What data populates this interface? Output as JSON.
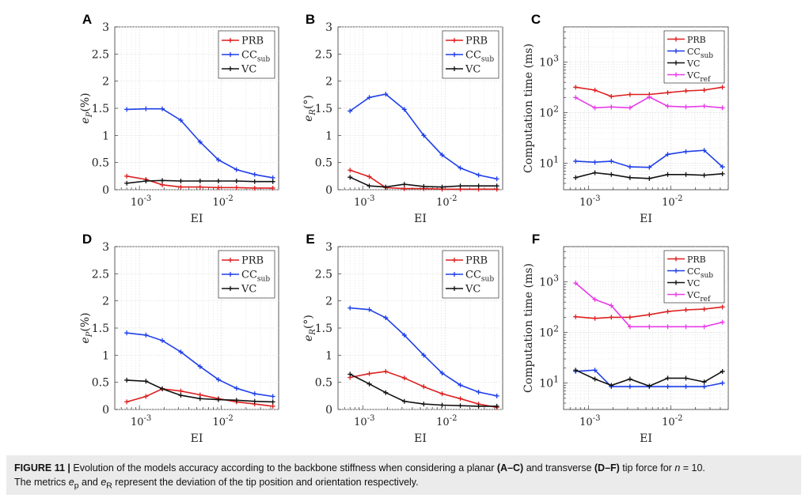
{
  "figure_label": "FIGURE 11",
  "caption": {
    "lead": "Evolution of the models accuracy according to the backbone stiffness when considering a planar ",
    "ref1": "(A–C)",
    "mid1": " and transverse ",
    "ref2": "(D–F)",
    "mid2": " tip force for ",
    "nvar": "n",
    "neq": " = 10.",
    "line2a": "The metrics ",
    "ep": "e",
    "ep_sub": "p",
    "and": " and ",
    "er": "e",
    "er_sub": "R",
    "line2b": " represent the deviation of the tip position and orientation respectively."
  },
  "colors": {
    "PRB": "#dd1f1f",
    "CCsub": "#1f3fe8",
    "VC": "#111111",
    "VCref": "#e83be8"
  },
  "chart_data": [
    {
      "panel": "A",
      "type": "line",
      "xscale": "log",
      "yscale": "linear",
      "xlim": [
        0.0005,
        0.05
      ],
      "ylim": [
        0,
        3
      ],
      "yticks": [
        "0",
        "0.5",
        "1",
        "1.5",
        "2",
        "2.5",
        "3"
      ],
      "xticks": [
        {
          "base": "10",
          "exp": "-3"
        },
        {
          "base": "10",
          "exp": "-2"
        }
      ],
      "xlabel": "EI",
      "ylabel": "e",
      "ylabel_sub": "P",
      "ylabel_unit": "(%)",
      "legend": "top-right",
      "x": [
        0.0007,
        0.0012,
        0.0019,
        0.0032,
        0.0055,
        0.0092,
        0.0153,
        0.0255,
        0.0425
      ],
      "series": [
        {
          "name": "PRB",
          "label": "PRB",
          "sub": "",
          "color": "#dd1f1f",
          "values": [
            0.25,
            0.19,
            0.09,
            0.05,
            0.05,
            0.04,
            0.04,
            0.03,
            0.03
          ]
        },
        {
          "name": "CCsub",
          "label": "CC",
          "sub": "sub",
          "color": "#1f3fe8",
          "values": [
            1.48,
            1.49,
            1.49,
            1.28,
            0.88,
            0.55,
            0.37,
            0.28,
            0.22
          ]
        },
        {
          "name": "VC",
          "label": "VC",
          "sub": "",
          "color": "#111111",
          "values": [
            0.12,
            0.16,
            0.17,
            0.16,
            0.16,
            0.16,
            0.16,
            0.15,
            0.15
          ]
        }
      ]
    },
    {
      "panel": "B",
      "type": "line",
      "xscale": "log",
      "yscale": "linear",
      "xlim": [
        0.0005,
        0.05
      ],
      "ylim": [
        0,
        3
      ],
      "yticks": [
        "0",
        "0.5",
        "1",
        "1.5",
        "2",
        "2.5",
        "3"
      ],
      "xticks": [
        {
          "base": "10",
          "exp": "-3"
        },
        {
          "base": "10",
          "exp": "-2"
        }
      ],
      "xlabel": "EI",
      "ylabel": "e",
      "ylabel_sub": "R",
      "ylabel_unit": "(°)",
      "legend": "top-right",
      "x": [
        0.0007,
        0.0012,
        0.0019,
        0.0032,
        0.0055,
        0.0092,
        0.0153,
        0.0255,
        0.0425
      ],
      "series": [
        {
          "name": "PRB",
          "label": "PRB",
          "sub": "",
          "color": "#dd1f1f",
          "values": [
            0.36,
            0.24,
            0.04,
            0.02,
            0.02,
            0.01,
            0.01,
            0.01,
            0.01
          ]
        },
        {
          "name": "CCsub",
          "label": "CC",
          "sub": "sub",
          "color": "#1f3fe8",
          "values": [
            1.45,
            1.7,
            1.76,
            1.48,
            1.0,
            0.64,
            0.4,
            0.27,
            0.2
          ]
        },
        {
          "name": "VC",
          "label": "VC",
          "sub": "",
          "color": "#111111",
          "values": [
            0.23,
            0.07,
            0.05,
            0.1,
            0.06,
            0.05,
            0.07,
            0.07,
            0.07
          ]
        }
      ]
    },
    {
      "panel": "C",
      "type": "line",
      "xscale": "log",
      "yscale": "log",
      "xlim": [
        0.0005,
        0.05
      ],
      "ylim": [
        3,
        5000
      ],
      "yticks_log": [
        {
          "base": "10",
          "exp": "1",
          "v": 10
        },
        {
          "base": "10",
          "exp": "2",
          "v": 100
        },
        {
          "base": "10",
          "exp": "3",
          "v": 1000
        }
      ],
      "xticks": [
        {
          "base": "10",
          "exp": "-3"
        },
        {
          "base": "10",
          "exp": "-2"
        }
      ],
      "xlabel": "EI",
      "ylabel": "Computation time (ms)",
      "legend": "top-right",
      "x": [
        0.0007,
        0.0012,
        0.0019,
        0.0032,
        0.0055,
        0.0092,
        0.0153,
        0.0255,
        0.0425
      ],
      "series": [
        {
          "name": "PRB",
          "label": "PRB",
          "sub": "",
          "color": "#dd1f1f",
          "values": [
            320,
            280,
            210,
            230,
            230,
            250,
            270,
            280,
            320
          ]
        },
        {
          "name": "CCsub",
          "label": "CC",
          "sub": "sub",
          "color": "#1f3fe8",
          "values": [
            11,
            10.5,
            11,
            8.5,
            8.3,
            15,
            17,
            18,
            8.5
          ]
        },
        {
          "name": "VC",
          "label": "VC",
          "sub": "",
          "color": "#111111",
          "values": [
            5.2,
            6.5,
            6.0,
            5.2,
            5.0,
            6.0,
            6.0,
            5.8,
            6.2
          ]
        },
        {
          "name": "VCref",
          "label": "VC",
          "sub": "ref",
          "color": "#e83be8",
          "values": [
            200,
            125,
            130,
            125,
            205,
            135,
            130,
            135,
            125
          ]
        }
      ]
    },
    {
      "panel": "D",
      "type": "line",
      "xscale": "log",
      "yscale": "linear",
      "xlim": [
        0.0005,
        0.05
      ],
      "ylim": [
        0,
        3
      ],
      "yticks": [
        "0",
        "0.5",
        "1",
        "1.5",
        "2",
        "2.5",
        "3"
      ],
      "xticks": [
        {
          "base": "10",
          "exp": "-3"
        },
        {
          "base": "10",
          "exp": "-2"
        }
      ],
      "xlabel": "EI",
      "ylabel": "e",
      "ylabel_sub": "P",
      "ylabel_unit": "(%)",
      "legend": "top-right",
      "x": [
        0.0007,
        0.0012,
        0.0019,
        0.0032,
        0.0055,
        0.0092,
        0.0153,
        0.0255,
        0.0425
      ],
      "series": [
        {
          "name": "PRB",
          "label": "PRB",
          "sub": "",
          "color": "#dd1f1f",
          "values": [
            0.14,
            0.24,
            0.38,
            0.34,
            0.27,
            0.2,
            0.14,
            0.1,
            0.06
          ]
        },
        {
          "name": "CCsub",
          "label": "CC",
          "sub": "sub",
          "color": "#1f3fe8",
          "values": [
            1.41,
            1.37,
            1.27,
            1.06,
            0.79,
            0.55,
            0.39,
            0.29,
            0.24
          ]
        },
        {
          "name": "VC",
          "label": "VC",
          "sub": "",
          "color": "#111111",
          "values": [
            0.54,
            0.52,
            0.38,
            0.26,
            0.2,
            0.18,
            0.17,
            0.15,
            0.14
          ]
        }
      ]
    },
    {
      "panel": "E",
      "type": "line",
      "xscale": "log",
      "yscale": "linear",
      "xlim": [
        0.0005,
        0.05
      ],
      "ylim": [
        0,
        3
      ],
      "yticks": [
        "0",
        "0.5",
        "1",
        "1.5",
        "2",
        "2.5",
        "3"
      ],
      "xticks": [
        {
          "base": "10",
          "exp": "-3"
        },
        {
          "base": "10",
          "exp": "-2"
        }
      ],
      "xlabel": "EI",
      "ylabel": "e",
      "ylabel_sub": "R",
      "ylabel_unit": "(°)",
      "legend": "top-right",
      "x": [
        0.0007,
        0.0012,
        0.0019,
        0.0032,
        0.0055,
        0.0092,
        0.0153,
        0.0255,
        0.0425
      ],
      "series": [
        {
          "name": "PRB",
          "label": "PRB",
          "sub": "",
          "color": "#dd1f1f",
          "values": [
            0.59,
            0.66,
            0.7,
            0.58,
            0.42,
            0.29,
            0.2,
            0.1,
            0.04
          ]
        },
        {
          "name": "CCsub",
          "label": "CC",
          "sub": "sub",
          "color": "#1f3fe8",
          "values": [
            1.87,
            1.84,
            1.69,
            1.37,
            1.0,
            0.67,
            0.45,
            0.32,
            0.25
          ]
        },
        {
          "name": "VC",
          "label": "VC",
          "sub": "",
          "color": "#111111",
          "values": [
            0.65,
            0.47,
            0.31,
            0.15,
            0.1,
            0.08,
            0.07,
            0.06,
            0.06
          ]
        }
      ]
    },
    {
      "panel": "F",
      "type": "line",
      "xscale": "log",
      "yscale": "log",
      "xlim": [
        0.0005,
        0.05
      ],
      "ylim": [
        3,
        5000
      ],
      "yticks_log": [
        {
          "base": "10",
          "exp": "1",
          "v": 10
        },
        {
          "base": "10",
          "exp": "2",
          "v": 100
        },
        {
          "base": "10",
          "exp": "3",
          "v": 1000
        }
      ],
      "xticks": [
        {
          "base": "10",
          "exp": "-3"
        },
        {
          "base": "10",
          "exp": "-2"
        }
      ],
      "xlabel": "EI",
      "ylabel": "Computation time (ms)",
      "legend": "top-right",
      "x": [
        0.0007,
        0.0012,
        0.0019,
        0.0032,
        0.0055,
        0.0092,
        0.0153,
        0.0255,
        0.0425
      ],
      "series": [
        {
          "name": "PRB",
          "label": "PRB",
          "sub": "",
          "color": "#dd1f1f",
          "values": [
            205,
            190,
            200,
            200,
            225,
            260,
            280,
            290,
            320
          ]
        },
        {
          "name": "CCsub",
          "label": "CC",
          "sub": "sub",
          "color": "#1f3fe8",
          "values": [
            17,
            18,
            8.5,
            8.5,
            8.5,
            8.5,
            8.5,
            8.5,
            10
          ]
        },
        {
          "name": "VC",
          "label": "VC",
          "sub": "",
          "color": "#111111",
          "values": [
            18,
            12,
            9,
            12,
            8.7,
            12.5,
            12.5,
            10.5,
            17
          ]
        },
        {
          "name": "VCref",
          "label": "VC",
          "sub": "ref",
          "color": "#e83be8",
          "values": [
            950,
            450,
            340,
            130,
            130,
            130,
            130,
            130,
            160
          ]
        }
      ]
    }
  ]
}
